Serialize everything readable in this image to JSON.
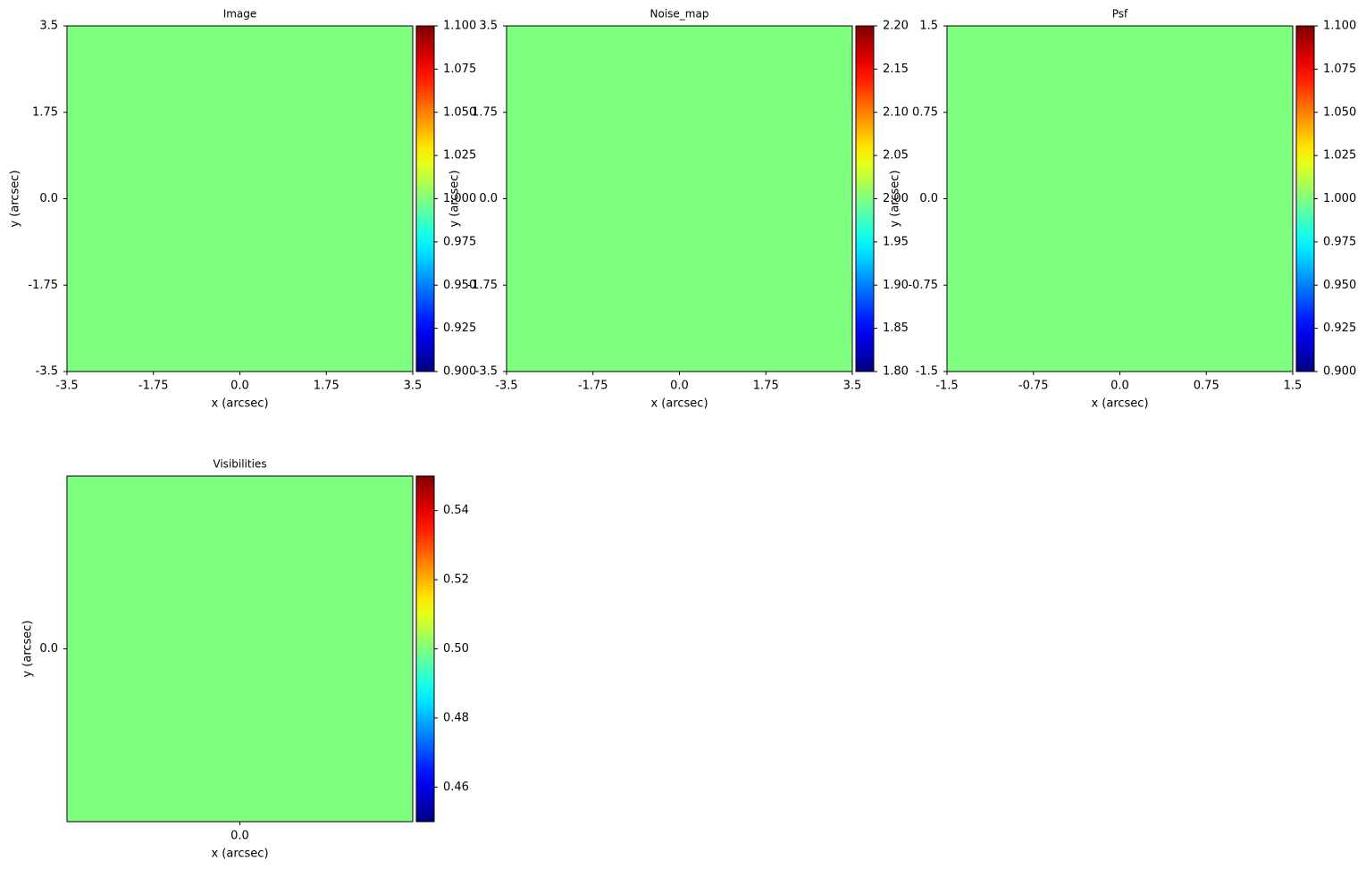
{
  "chart_data": [
    {
      "type": "heatmap",
      "title": "Image",
      "xlabel": "x (arcsec)",
      "ylabel": "y (arcsec)",
      "colormap": "jet",
      "values": [
        [
          1.0
        ]
      ],
      "xlim": [
        -3.5,
        3.5
      ],
      "ylim": [
        -3.5,
        3.5
      ],
      "xticks": [
        -3.5,
        -1.75,
        {
          "value": 0,
          "label": "0.0"
        },
        1.75,
        3.5
      ],
      "yticks": [
        -3.5,
        -1.75,
        {
          "value": 0,
          "label": "0.0"
        },
        1.75,
        3.5
      ],
      "clim": [
        0.9,
        1.1
      ],
      "cticks": [
        {
          "value": 0.9,
          "label": "0.900"
        },
        {
          "value": 0.925,
          "label": "0.925"
        },
        {
          "value": 0.95,
          "label": "0.950"
        },
        {
          "value": 0.975,
          "label": "0.975"
        },
        {
          "value": 1.0,
          "label": "1.000"
        },
        {
          "value": 1.025,
          "label": "1.025"
        },
        {
          "value": 1.05,
          "label": "1.050"
        },
        {
          "value": 1.075,
          "label": "1.075"
        },
        {
          "value": 1.1,
          "label": "1.100"
        }
      ]
    },
    {
      "type": "heatmap",
      "title": "Noise_map",
      "xlabel": "x (arcsec)",
      "ylabel": "y (arcsec)",
      "colormap": "jet",
      "values": [
        [
          2.0
        ]
      ],
      "xlim": [
        -3.5,
        3.5
      ],
      "ylim": [
        -3.5,
        3.5
      ],
      "xticks": [
        -3.5,
        -1.75,
        {
          "value": 0,
          "label": "0.0"
        },
        1.75,
        3.5
      ],
      "yticks": [
        -3.5,
        -1.75,
        {
          "value": 0,
          "label": "0.0"
        },
        1.75,
        3.5
      ],
      "clim": [
        1.8,
        2.2
      ],
      "cticks": [
        {
          "value": 1.8,
          "label": "1.80"
        },
        1.85,
        {
          "value": 1.9,
          "label": "1.90"
        },
        1.95,
        {
          "value": 2.0,
          "label": "2.00"
        },
        2.05,
        {
          "value": 2.1,
          "label": "2.10"
        },
        2.15,
        {
          "value": 2.2,
          "label": "2.20"
        }
      ]
    },
    {
      "type": "heatmap",
      "title": "Psf",
      "xlabel": "x (arcsec)",
      "ylabel": "y (arcsec)",
      "colormap": "jet",
      "values": [
        [
          1.0
        ]
      ],
      "xlim": [
        -1.5,
        1.5
      ],
      "ylim": [
        -1.5,
        1.5
      ],
      "xticks": [
        -1.5,
        -0.75,
        {
          "value": 0,
          "label": "0.0"
        },
        0.75,
        1.5
      ],
      "yticks": [
        -1.5,
        -0.75,
        {
          "value": 0,
          "label": "0.0"
        },
        0.75,
        1.5
      ],
      "clim": [
        0.9,
        1.1
      ],
      "cticks": [
        {
          "value": 0.9,
          "label": "0.900"
        },
        {
          "value": 0.925,
          "label": "0.925"
        },
        {
          "value": 0.95,
          "label": "0.950"
        },
        {
          "value": 0.975,
          "label": "0.975"
        },
        {
          "value": 1.0,
          "label": "1.000"
        },
        {
          "value": 1.025,
          "label": "1.025"
        },
        {
          "value": 1.05,
          "label": "1.050"
        },
        {
          "value": 1.075,
          "label": "1.075"
        },
        {
          "value": 1.1,
          "label": "1.100"
        }
      ]
    },
    {
      "type": "heatmap",
      "title": "Visibilities",
      "xlabel": "x (arcsec)",
      "ylabel": "y (arcsec)",
      "colormap": "jet",
      "values": [
        [
          0.5
        ]
      ],
      "xlim": [
        -1,
        1
      ],
      "ylim": [
        -1,
        1
      ],
      "xticks": [
        {
          "value": 0,
          "label": "0.0"
        }
      ],
      "yticks": [
        {
          "value": 0,
          "label": "0.0"
        }
      ],
      "clim": [
        0.45,
        0.55
      ],
      "cticks": [
        0.46,
        0.48,
        {
          "value": 0.5,
          "label": "0.50"
        },
        0.52,
        0.54
      ]
    }
  ]
}
